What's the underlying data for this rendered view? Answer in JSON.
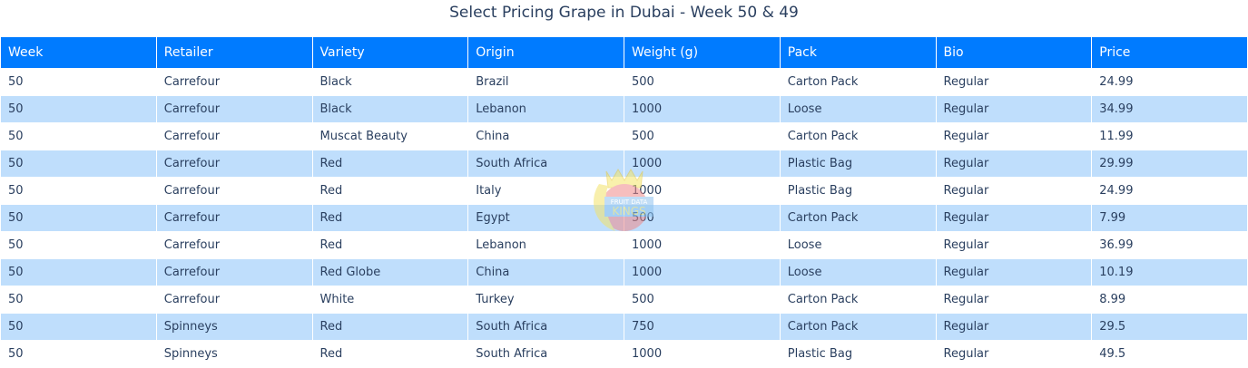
{
  "title": "Select Pricing Grape in Dubai - Week 50 & 49",
  "colors": {
    "header_bg": "#007bff",
    "header_text": "#ffffff",
    "row_even": "#ffffff",
    "row_odd": "#bfdefc",
    "cell_text": "#2a3f5f"
  },
  "watermark": {
    "text": "FRUIT DATA KINGS",
    "icon": "banana-crown-logo"
  },
  "table": {
    "columns": [
      "Week",
      "Retailer",
      "Variety",
      "Origin",
      "Weight (g)",
      "Pack",
      "Bio",
      "Price"
    ],
    "rows": [
      [
        "50",
        "Carrefour",
        "Black",
        "Brazil",
        "500",
        "Carton Pack",
        "Regular",
        "24.99"
      ],
      [
        "50",
        "Carrefour",
        "Black",
        "Lebanon",
        "1000",
        "Loose",
        "Regular",
        "34.99"
      ],
      [
        "50",
        "Carrefour",
        "Muscat Beauty",
        "China",
        "500",
        "Carton Pack",
        "Regular",
        "11.99"
      ],
      [
        "50",
        "Carrefour",
        "Red",
        "South Africa",
        "1000",
        "Plastic Bag",
        "Regular",
        "29.99"
      ],
      [
        "50",
        "Carrefour",
        "Red",
        "Italy",
        "1000",
        "Plastic Bag",
        "Regular",
        "24.99"
      ],
      [
        "50",
        "Carrefour",
        "Red",
        "Egypt",
        "500",
        "Carton Pack",
        "Regular",
        "7.99"
      ],
      [
        "50",
        "Carrefour",
        "Red",
        "Lebanon",
        "1000",
        "Loose",
        "Regular",
        "36.99"
      ],
      [
        "50",
        "Carrefour",
        "Red Globe",
        "China",
        "1000",
        "Loose",
        "Regular",
        "10.19"
      ],
      [
        "50",
        "Carrefour",
        "White",
        "Turkey",
        "500",
        "Carton Pack",
        "Regular",
        "8.99"
      ],
      [
        "50",
        "Spinneys",
        "Red",
        "South Africa",
        "750",
        "Carton Pack",
        "Regular",
        "29.5"
      ],
      [
        "50",
        "Spinneys",
        "Red",
        "South Africa",
        "1000",
        "Plastic Bag",
        "Regular",
        "49.5"
      ]
    ]
  }
}
